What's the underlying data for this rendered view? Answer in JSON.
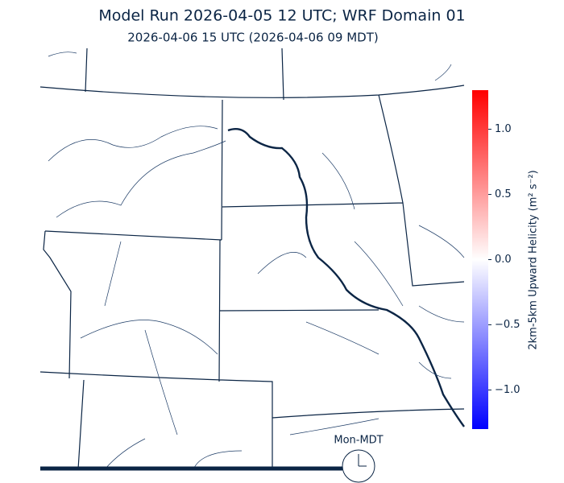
{
  "title": "Model Run 2026-04-05 12 UTC; WRF Domain 01",
  "subtitle": "2026-04-06 15 UTC  (2026-04-06 09 MDT)",
  "clock_label": "Mon-MDT",
  "colorbar": {
    "label": "2km-5km Upward Helicity (m² s⁻²)",
    "ylim": [
      -1.3,
      1.3
    ],
    "colors": [
      "#0000ff",
      "#ffffff",
      "#ff0000"
    ],
    "yticks": [
      {
        "value": -1,
        "label": "−1.0"
      },
      {
        "value": -0.5,
        "label": "−0.5"
      },
      {
        "value": 0,
        "label": "0.0"
      },
      {
        "value": 0.5,
        "label": "0.5"
      },
      {
        "value": 1,
        "label": "1.0"
      }
    ]
  }
}
